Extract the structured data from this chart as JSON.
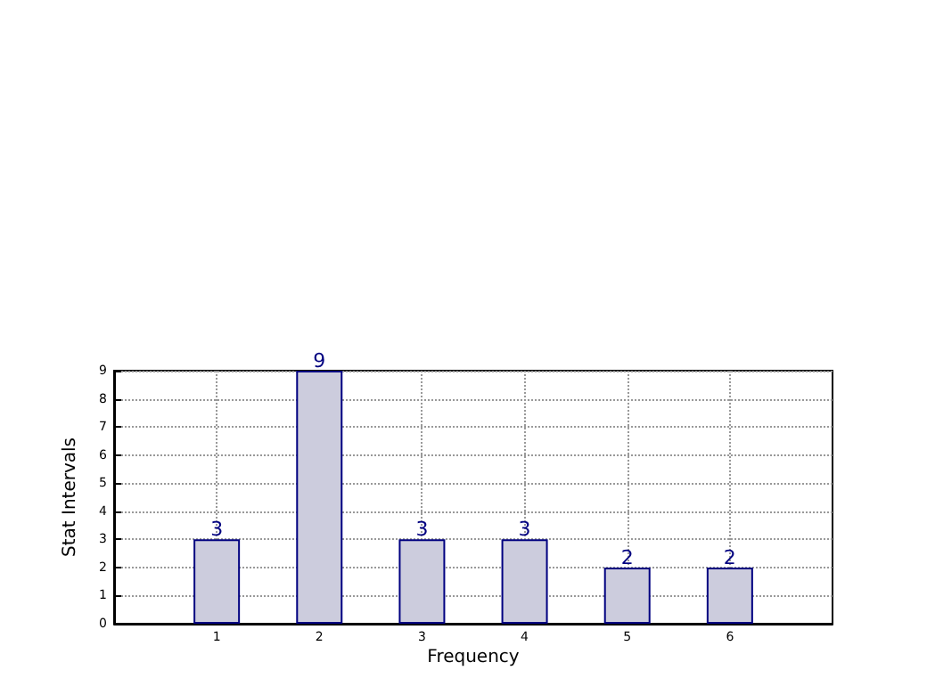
{
  "chart_data": {
    "type": "bar",
    "xlabel": "Frequency",
    "ylabel": "Stat Intervals",
    "x": [
      1,
      2,
      3,
      4,
      5,
      6
    ],
    "values": [
      3,
      9,
      3,
      3,
      2,
      2
    ],
    "color": "#ccccdd",
    "xlim": [
      0,
      7
    ],
    "xticks": [
      1,
      2,
      3,
      4,
      5,
      6
    ],
    "ylim": [
      0,
      9
    ],
    "yticks": [
      0,
      1,
      2,
      3,
      4,
      5,
      6,
      7,
      8,
      9
    ],
    "grid": true,
    "data_labels": true
  }
}
